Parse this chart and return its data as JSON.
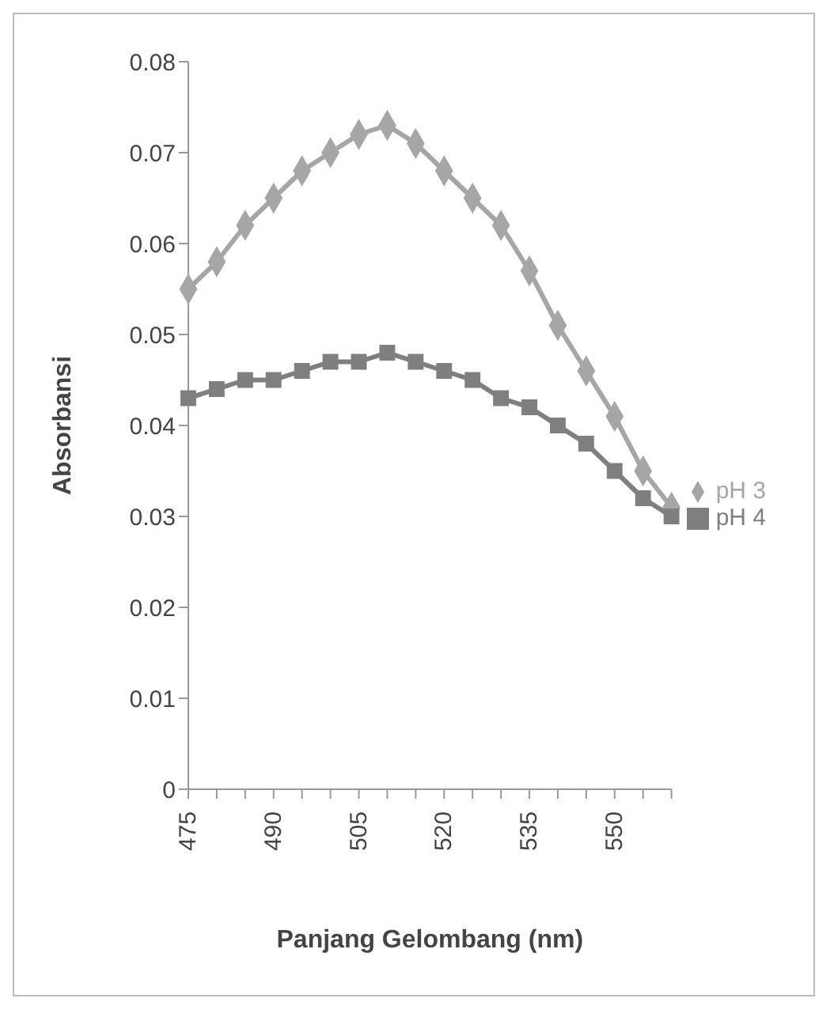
{
  "chart_data": {
    "type": "line",
    "xlabel": "Panjang Gelombang (nm)",
    "ylabel": "Absorbansi",
    "categories": [
      "475",
      null,
      null,
      "490",
      null,
      null,
      "505",
      null,
      null,
      "520",
      null,
      null,
      "535",
      null,
      null,
      "550",
      null,
      null
    ],
    "series": [
      {
        "name": "pH 3",
        "color": "#a6a6a6",
        "marker": "diamond",
        "values": [
          0.055,
          0.058,
          0.062,
          0.065,
          0.068,
          0.07,
          0.072,
          0.073,
          0.071,
          0.068,
          0.065,
          0.062,
          0.057,
          0.051,
          0.046,
          0.041,
          0.035,
          0.031
        ]
      },
      {
        "name": "pH 4",
        "color": "#7f7f7f",
        "marker": "square",
        "values": [
          0.043,
          0.044,
          0.045,
          0.045,
          0.046,
          0.047,
          0.047,
          0.048,
          0.047,
          0.046,
          0.045,
          0.043,
          0.042,
          0.04,
          0.038,
          0.035,
          0.032,
          0.03
        ]
      }
    ],
    "ylim": [
      0,
      0.08
    ],
    "yticks": [
      0,
      0.01,
      0.02,
      0.03,
      0.04,
      0.05,
      0.06,
      0.07,
      0.08
    ],
    "grid": false,
    "legend": "right",
    "line_style": "solid"
  }
}
